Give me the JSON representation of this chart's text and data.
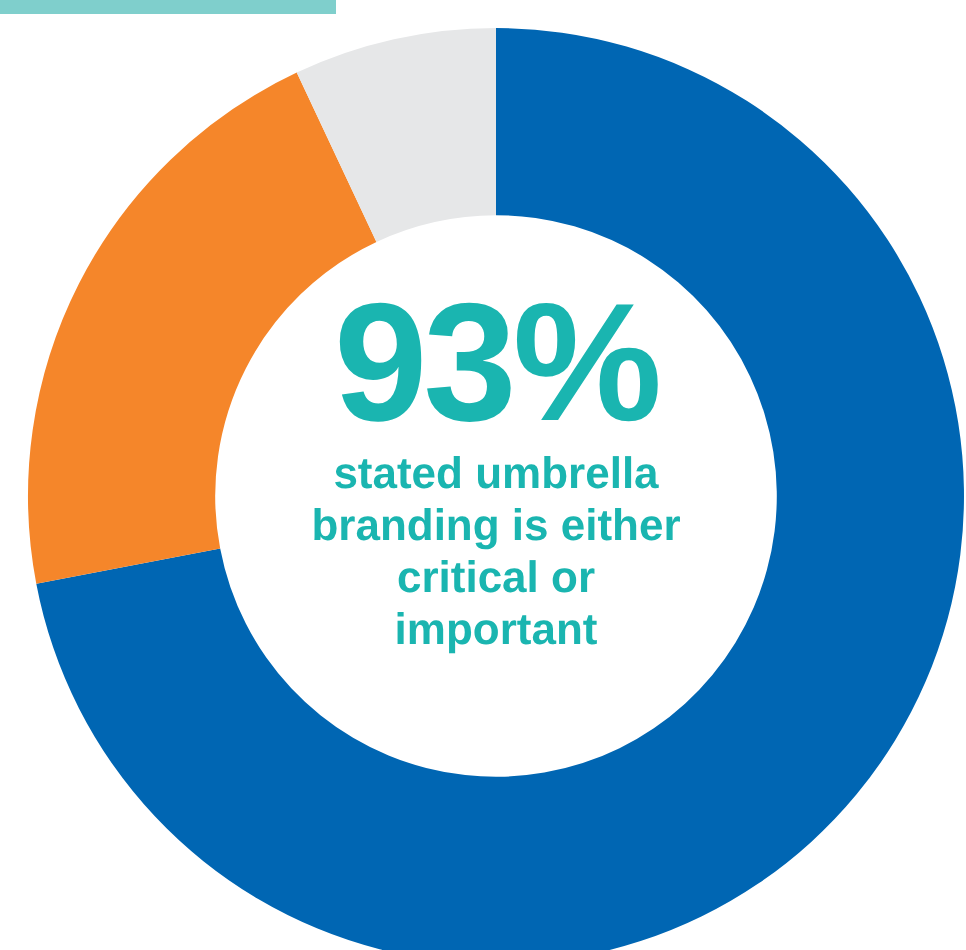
{
  "chart_data": {
    "type": "donut",
    "categories": [
      null,
      null,
      null
    ],
    "values": [
      72,
      21,
      7
    ],
    "colors": [
      "#0066b3",
      "#f5862a",
      "#e6e7e8"
    ],
    "legend": false,
    "annotations": [
      "93%",
      "stated umbrella branding is either critical or important"
    ]
  }
}
